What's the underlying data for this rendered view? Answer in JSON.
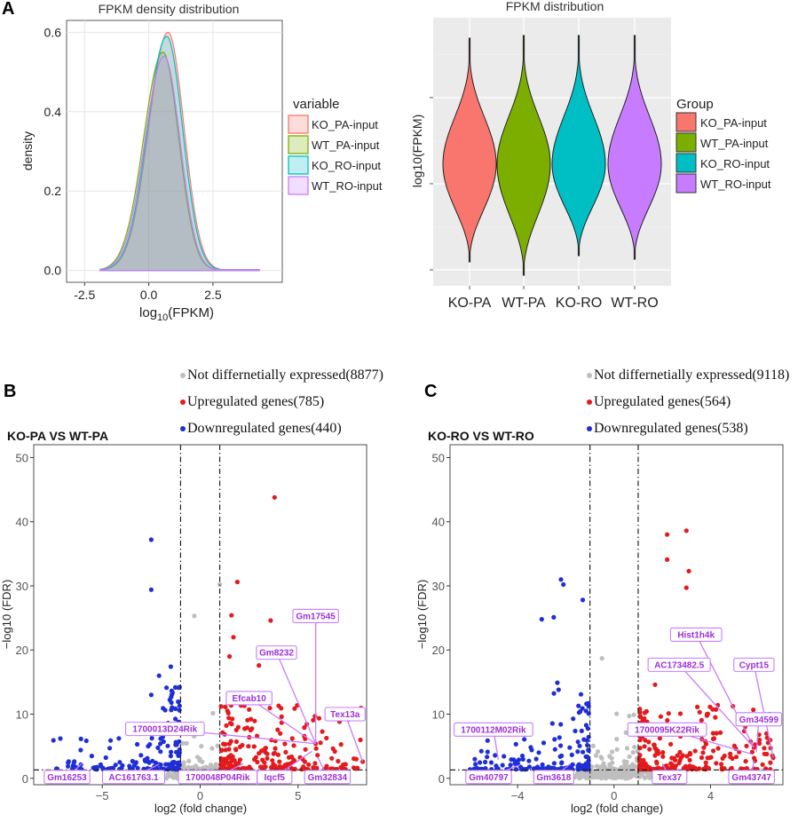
{
  "figure": {
    "panel_a_letter": "A",
    "panel_b_letter": "B",
    "panel_c_letter": "C"
  },
  "chart_data": [
    {
      "id": "density",
      "type": "area",
      "title": "FPKM density distribution",
      "xlabel": "log10(FPKM)",
      "xlabel_main": "log",
      "xlabel_sub": "10",
      "xlabel_rest": "(FPKM)",
      "ylabel": "density",
      "xlim": [
        -3.2,
        5.2
      ],
      "ylim": [
        -0.03,
        0.63
      ],
      "xticks": [
        -2.5,
        0,
        2.5
      ],
      "xtick_labels": [
        "-2.5",
        "0.0",
        "2.5"
      ],
      "yticks": [
        0,
        0.2,
        0.4,
        0.6
      ],
      "ytick_labels": [
        "0.0",
        "0.2",
        "0.4",
        "0.6"
      ],
      "legend_title": "variable",
      "legend_position": "right",
      "series": [
        {
          "name": "KO_PA-input",
          "color": "#F8766D",
          "peak": 0.6,
          "mode": 0.75
        },
        {
          "name": "WT_PA-input",
          "color": "#7CAE00",
          "peak": 0.55,
          "mode": 0.55
        },
        {
          "name": "KO_RO-input",
          "color": "#00BFC4",
          "peak": 0.59,
          "mode": 0.7
        },
        {
          "name": "WT_RO-input",
          "color": "#C77CFF",
          "peak": 0.54,
          "mode": 0.6
        }
      ],
      "x_support": [
        -1.9,
        4.3
      ]
    },
    {
      "id": "violin",
      "type": "violin",
      "title": "FPKM distribution",
      "ylabel": "log10(FPKM)",
      "xlabel": "",
      "categories": [
        "KO-PA",
        "WT-PA",
        "KO-RO",
        "WT-RO"
      ],
      "colors": [
        "#F8766D",
        "#7CAE00",
        "#00BFC4",
        "#C77CFF"
      ],
      "legend_title": "Group",
      "legend_entries": [
        "KO_PA-input",
        "WT_PA-input",
        "KO_RO-input",
        "WT_RO-input"
      ],
      "legend_position": "right"
    },
    {
      "id": "volcano_b",
      "type": "scatter",
      "title": "KO-PA VS WT-PA",
      "xlabel": "log2 (fold change)",
      "ylabel": "−log10 (FDR)",
      "xlim": [
        -8.5,
        8.5
      ],
      "ylim": [
        -1,
        52
      ],
      "xticks": [
        -5,
        0,
        5
      ],
      "xtick_labels": [
        "−5",
        "0",
        "5"
      ],
      "yticks": [
        0,
        10,
        20,
        30,
        40,
        50
      ],
      "ytick_labels": [
        "0",
        "10",
        "20",
        "30",
        "40",
        "50"
      ],
      "vlines": [
        -1,
        1
      ],
      "hline": 1.3,
      "legend": [
        {
          "label": "Not differnetially expressed(8877)",
          "color": "#BEBEBE"
        },
        {
          "label": "Upregulated genes(785)",
          "color": "#E41A1C"
        },
        {
          "label": "Downregulated genes(440)",
          "color": "#1F2FD8"
        }
      ],
      "counts": {
        "ns": 8877,
        "up": 785,
        "down": 440
      },
      "highlight_points": [
        {
          "x": 3.8,
          "y": 43.8,
          "g": "up"
        },
        {
          "x": 1.9,
          "y": 30.6,
          "g": "up"
        },
        {
          "x": 1.0,
          "y": 30.2,
          "g": "ns"
        },
        {
          "x": 3.6,
          "y": 24.6,
          "g": "up"
        },
        {
          "x": 1.6,
          "y": 25.4,
          "g": "up"
        },
        {
          "x": 1.7,
          "y": 22.0,
          "g": "up"
        },
        {
          "x": 3.0,
          "y": 17.6,
          "g": "up"
        },
        {
          "x": 1.5,
          "y": 19.0,
          "g": "up"
        },
        {
          "x": -2.5,
          "y": 37.2,
          "g": "down"
        },
        {
          "x": -2.5,
          "y": 29.4,
          "g": "down"
        },
        {
          "x": -0.3,
          "y": 25.3,
          "g": "ns"
        },
        {
          "x": -1.5,
          "y": 17.4,
          "g": "down"
        },
        {
          "x": -2.1,
          "y": 16.0,
          "g": "down"
        },
        {
          "x": 8.3,
          "y": 2.6,
          "g": "up"
        },
        {
          "x": 5.9,
          "y": 5.4,
          "g": "up"
        }
      ],
      "labels": [
        {
          "text": "Gm17545",
          "lx": 5.9,
          "ly": 25.3,
          "px": 5.9,
          "py": 5.4
        },
        {
          "text": "Gm8232",
          "lx": 3.9,
          "ly": 19.6,
          "px": 5.9,
          "py": 5.4
        },
        {
          "text": "Efcab10",
          "lx": 2.5,
          "ly": 12.5,
          "px": 5.9,
          "py": 5.4
        },
        {
          "text": "Tex13a",
          "lx": 7.4,
          "ly": 10.0,
          "px": 8.3,
          "py": 2.6
        },
        {
          "text": "1700013D24Rik",
          "lx": -1.8,
          "ly": 7.7,
          "px": 5.9,
          "py": 5.4
        },
        {
          "text": "Gm16253",
          "lx": -6.8,
          "ly": 0.2,
          "px": -6.0,
          "py": 2.4
        },
        {
          "text": "AC161763.1",
          "lx": -3.4,
          "ly": 0.2,
          "px": -2.1,
          "py": 2.2
        },
        {
          "text": "1700048P04Rik",
          "lx": 0.9,
          "ly": 0.2,
          "px": 2.2,
          "py": 2.3
        },
        {
          "text": "Iqcf5",
          "lx": 3.8,
          "ly": 0.2,
          "px": 5.7,
          "py": 4.2
        },
        {
          "text": "Gm32834",
          "lx": 6.5,
          "ly": 0.2,
          "px": 6.0,
          "py": 3.3
        }
      ]
    },
    {
      "id": "volcano_c",
      "type": "scatter",
      "title": "KO-RO VS WT-RO",
      "xlabel": "log2 (fold change)",
      "ylabel": "−log10 (FDR)",
      "xlim": [
        -6.8,
        7.0
      ],
      "ylim": [
        -1,
        52
      ],
      "xticks": [
        -4,
        0,
        4
      ],
      "xtick_labels": [
        "−4",
        "0",
        "4"
      ],
      "yticks": [
        0,
        10,
        20,
        30,
        40,
        50
      ],
      "ytick_labels": [
        "0",
        "10",
        "20",
        "30",
        "40",
        "50"
      ],
      "vlines": [
        -1,
        1
      ],
      "hline": 1.3,
      "legend": [
        {
          "label": "Not differnetially expressed(9118)",
          "color": "#BEBEBE"
        },
        {
          "label": "Upregulated genes(564)",
          "color": "#E41A1C"
        },
        {
          "label": "Downregulated genes(538)",
          "color": "#1F2FD8"
        }
      ],
      "counts": {
        "ns": 9118,
        "up": 564,
        "down": 538
      },
      "highlight_points": [
        {
          "x": 2.2,
          "y": 38.0,
          "g": "up"
        },
        {
          "x": 3.0,
          "y": 38.6,
          "g": "up"
        },
        {
          "x": 2.2,
          "y": 34.1,
          "g": "up"
        },
        {
          "x": 3.1,
          "y": 32.3,
          "g": "up"
        },
        {
          "x": 3.0,
          "y": 29.7,
          "g": "up"
        },
        {
          "x": -2.2,
          "y": 31.0,
          "g": "down"
        },
        {
          "x": -2.1,
          "y": 30.2,
          "g": "down"
        },
        {
          "x": -1.3,
          "y": 27.8,
          "g": "down"
        },
        {
          "x": -3.0,
          "y": 24.8,
          "g": "down"
        },
        {
          "x": -2.5,
          "y": 25.1,
          "g": "down"
        },
        {
          "x": -0.5,
          "y": 18.7,
          "g": "ns"
        },
        {
          "x": 1.5,
          "y": 17.6,
          "g": "up"
        },
        {
          "x": 1.7,
          "y": 14.6,
          "g": "up"
        },
        {
          "x": 4.3,
          "y": 11.4,
          "g": "up"
        },
        {
          "x": 6.6,
          "y": 3.2,
          "g": "up"
        },
        {
          "x": 5.8,
          "y": 4.8,
          "g": "up"
        }
      ],
      "labels": [
        {
          "text": "Hist1h4k",
          "lx": 3.4,
          "ly": 22.4,
          "px": 5.8,
          "py": 4.8
        },
        {
          "text": "Cypt15",
          "lx": 5.8,
          "ly": 17.7,
          "px": 6.6,
          "py": 3.2
        },
        {
          "text": "AC173482.5",
          "lx": 2.7,
          "ly": 17.7,
          "px": 5.8,
          "py": 4.8
        },
        {
          "text": "Gm34599",
          "lx": 6.0,
          "ly": 9.2,
          "px": 5.9,
          "py": 4.1
        },
        {
          "text": "1700095K22Rik",
          "lx": 2.2,
          "ly": 7.6,
          "px": 5.7,
          "py": 3.8
        },
        {
          "text": "1700112M02Rik",
          "lx": -5.0,
          "ly": 7.6,
          "px": -4.8,
          "py": 2.9
        },
        {
          "text": "Gm40797",
          "lx": -5.2,
          "ly": 0.2,
          "px": -3.9,
          "py": 2.1
        },
        {
          "text": "Gm3618",
          "lx": -2.5,
          "ly": 0.2,
          "px": -1.8,
          "py": 2.3
        },
        {
          "text": "Tex37",
          "lx": 2.3,
          "ly": 0.2,
          "px": 2.0,
          "py": 2.3
        },
        {
          "text": "Gm43747",
          "lx": 5.7,
          "ly": 0.2,
          "px": 5.8,
          "py": 2.8
        }
      ]
    }
  ]
}
